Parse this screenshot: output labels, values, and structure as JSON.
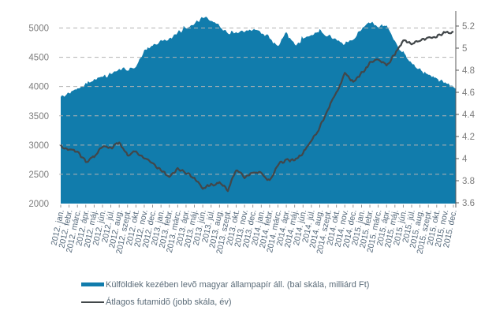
{
  "legend": {
    "series1_label": "Külföldiek kezében levõ magyar állampapír áll. (bal skála, milliárd Ft)",
    "series2_label": "Átlagos futamidõ (jobb skála, év)"
  },
  "colors": {
    "area": "#117cac",
    "line": "#42474a",
    "grid": "#b3b3b3",
    "right_axis": "#595959",
    "y_tick_text": "#7c7c7c",
    "x_tick_text": "#54687a",
    "legend_text": "#5a6b78"
  },
  "chart_data": {
    "type": "area",
    "title": "",
    "x": [
      "2012. jan.",
      "2012. febr.",
      "2012. márc.",
      "2012. ápr.",
      "2012. máj.",
      "2012. jún.",
      "2012. júl.",
      "2012. aug.",
      "2012. szept.",
      "2012. okt.",
      "2012. nov.",
      "2012. dec.",
      "2013. jan.",
      "2013. febr.",
      "2013. márc.",
      "2013. ápr.",
      "2013. máj.",
      "2013. jún.",
      "2013. júl.",
      "2013. aug.",
      "2013. szept.",
      "2013. okt.",
      "2013. nov.",
      "2013. dec.",
      "2014. jan.",
      "2014. febr.",
      "2014. márc.",
      "2014. ápr.",
      "2014. máj.",
      "2014. jún.",
      "2014. júl.",
      "2014. aug.",
      "2014. szept.",
      "2014. okt.",
      "2014. nov.",
      "2014. dec.",
      "2015. jan.",
      "2015. febr.",
      "2015. márc.",
      "2015. ápr.",
      "2015. máj.",
      "2015. jún.",
      "2015. júl.",
      "2015. aug.",
      "2015. szept.",
      "2015. okt.",
      "2015. nov.",
      "2015. dec."
    ],
    "series": [
      {
        "name": "Külföldiek kezében levõ magyar állampapír áll. (bal skála, milliárd Ft)",
        "type": "area",
        "axis": "left",
        "values": [
          3840,
          3880,
          3950,
          4040,
          4120,
          4140,
          4210,
          4300,
          4290,
          4340,
          4620,
          4700,
          4780,
          4810,
          4930,
          5000,
          5070,
          5170,
          5140,
          5030,
          4910,
          4930,
          4960,
          4970,
          4930,
          4830,
          4680,
          4930,
          4700,
          4800,
          4870,
          4970,
          4870,
          4800,
          4730,
          4830,
          4970,
          5090,
          5030,
          5070,
          4760,
          4570,
          4400,
          4290,
          4220,
          4150,
          4060,
          3990
        ]
      },
      {
        "name": "Átlagos futamidõ (jobb skála, év)",
        "type": "line",
        "axis": "right",
        "values": [
          4.12,
          4.08,
          4.06,
          3.97,
          4.02,
          4.12,
          4.09,
          4.14,
          4.03,
          4.07,
          4.0,
          3.95,
          3.9,
          3.83,
          3.91,
          3.87,
          3.82,
          3.74,
          3.76,
          3.79,
          3.72,
          3.9,
          3.84,
          3.88,
          3.87,
          3.8,
          3.94,
          3.99,
          3.98,
          4.05,
          4.16,
          4.28,
          4.45,
          4.6,
          4.77,
          4.7,
          4.77,
          4.86,
          4.9,
          4.84,
          4.95,
          5.08,
          5.04,
          5.07,
          5.09,
          5.11,
          5.14,
          5.15
        ]
      }
    ],
    "left_axis": {
      "ticks": [
        2000,
        2500,
        3000,
        3500,
        4000,
        4500,
        5000
      ],
      "range": [
        2000,
        5310
      ]
    },
    "right_axis": {
      "ticks": [
        3.6,
        3.8,
        4,
        4.2,
        4.4,
        4.6,
        4.8,
        5,
        5.2
      ],
      "range": [
        3.6,
        5.35
      ]
    },
    "grid": "horizontal dashed at left-axis ticks",
    "legend_position": "bottom"
  }
}
